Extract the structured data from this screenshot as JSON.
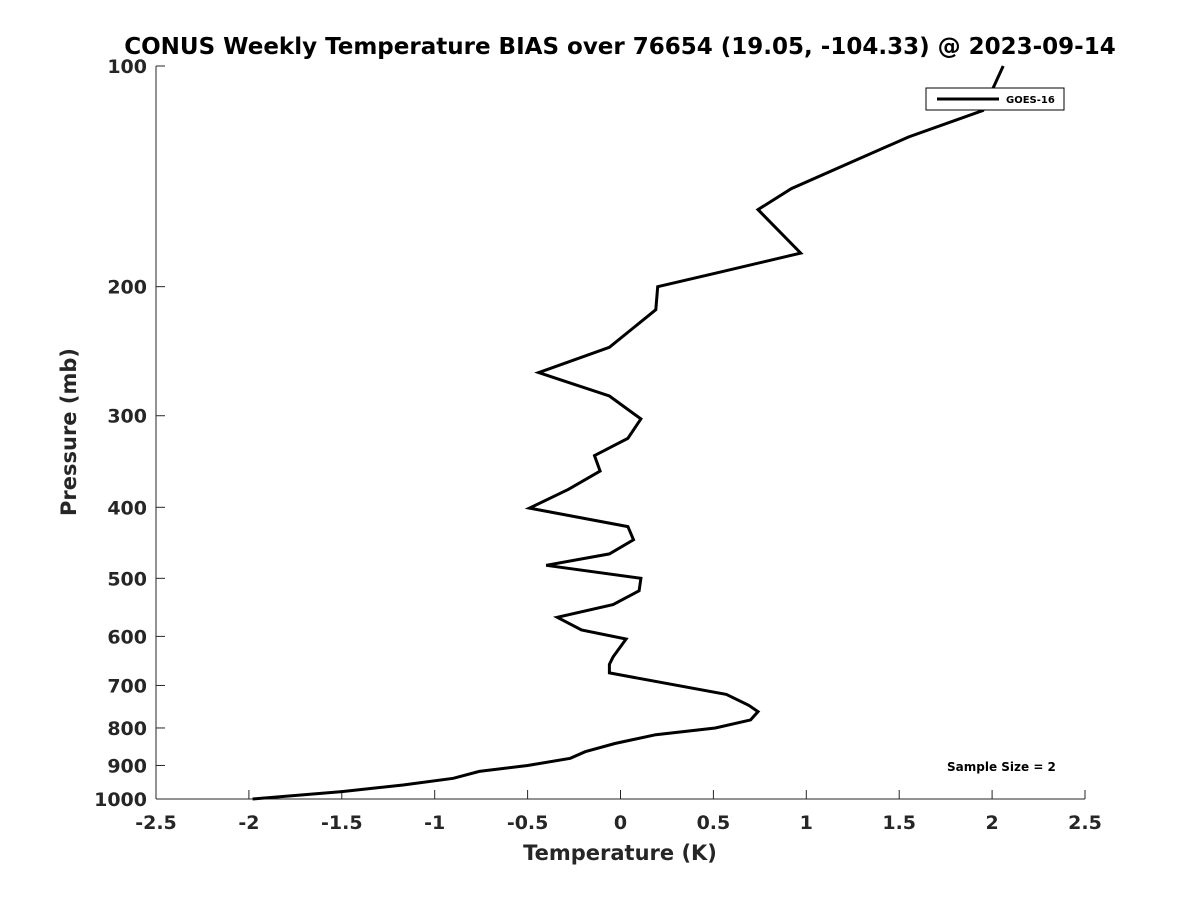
{
  "chart_data": {
    "type": "line",
    "title": "CONUS Weekly Temperature BIAS over 76654 (19.05, -104.33) @ 2023-09-14",
    "xlabel": "Temperature (K)",
    "ylabel": "Pressure (mb)",
    "xlim": [
      -2.5,
      2.5
    ],
    "ylim": [
      100,
      1000
    ],
    "y_scale": "log",
    "y_reversed": true,
    "x_ticks": [
      -2.5,
      -2,
      -1.5,
      -1,
      -0.5,
      0,
      0.5,
      1,
      1.5,
      2,
      2.5
    ],
    "x_tick_labels": [
      "-2.5",
      "-2",
      "-1.5",
      "-1",
      "-0.5",
      "0",
      "0.5",
      "1",
      "1.5",
      "2",
      "2.5"
    ],
    "y_ticks": [
      100,
      200,
      300,
      400,
      500,
      600,
      700,
      800,
      900,
      1000
    ],
    "y_tick_labels": [
      "100",
      "200",
      "300",
      "400",
      "500",
      "600",
      "700",
      "800",
      "900",
      "1000"
    ],
    "grid": false,
    "legend": {
      "position": "top-right"
    },
    "annotation": "Sample Size = 2",
    "series": [
      {
        "name": "GOES-16",
        "color": "#000000",
        "points": [
          {
            "x": 2.06,
            "y": 100
          },
          {
            "x": 1.95,
            "y": 115
          },
          {
            "x": 1.55,
            "y": 125
          },
          {
            "x": 1.25,
            "y": 135
          },
          {
            "x": 0.92,
            "y": 147
          },
          {
            "x": 0.74,
            "y": 157
          },
          {
            "x": 0.97,
            "y": 180
          },
          {
            "x": 0.5,
            "y": 192
          },
          {
            "x": 0.2,
            "y": 200
          },
          {
            "x": 0.19,
            "y": 215
          },
          {
            "x": -0.06,
            "y": 242
          },
          {
            "x": -0.44,
            "y": 262
          },
          {
            "x": -0.06,
            "y": 282
          },
          {
            "x": 0.11,
            "y": 303
          },
          {
            "x": 0.04,
            "y": 322
          },
          {
            "x": -0.14,
            "y": 340
          },
          {
            "x": -0.11,
            "y": 357
          },
          {
            "x": -0.28,
            "y": 378
          },
          {
            "x": -0.49,
            "y": 401
          },
          {
            "x": 0.04,
            "y": 425
          },
          {
            "x": 0.07,
            "y": 443
          },
          {
            "x": -0.06,
            "y": 463
          },
          {
            "x": -0.4,
            "y": 480
          },
          {
            "x": 0.11,
            "y": 500
          },
          {
            "x": 0.1,
            "y": 520
          },
          {
            "x": -0.04,
            "y": 543
          },
          {
            "x": -0.34,
            "y": 565
          },
          {
            "x": -0.21,
            "y": 588
          },
          {
            "x": 0.03,
            "y": 605
          },
          {
            "x": -0.04,
            "y": 640
          },
          {
            "x": -0.06,
            "y": 655
          },
          {
            "x": -0.06,
            "y": 673
          },
          {
            "x": 0.57,
            "y": 720
          },
          {
            "x": 0.69,
            "y": 745
          },
          {
            "x": 0.74,
            "y": 760
          },
          {
            "x": 0.7,
            "y": 780
          },
          {
            "x": 0.51,
            "y": 800
          },
          {
            "x": 0.19,
            "y": 817
          },
          {
            "x": -0.03,
            "y": 840
          },
          {
            "x": -0.19,
            "y": 862
          },
          {
            "x": -0.27,
            "y": 880
          },
          {
            "x": -0.5,
            "y": 900
          },
          {
            "x": -0.76,
            "y": 917
          },
          {
            "x": -0.9,
            "y": 937
          },
          {
            "x": -1.17,
            "y": 957
          },
          {
            "x": -1.5,
            "y": 977
          },
          {
            "x": -1.98,
            "y": 1000
          }
        ]
      }
    ]
  }
}
